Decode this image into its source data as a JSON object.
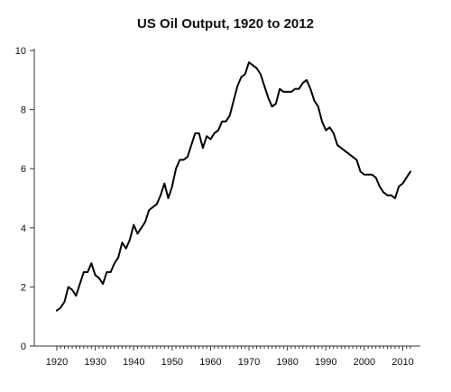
{
  "chart_data": {
    "type": "line",
    "title": "US Oil Output, 1920 to 2012",
    "xlabel": "",
    "ylabel": "",
    "xlim": [
      1920,
      2012
    ],
    "ylim": [
      0,
      10
    ],
    "grid": false,
    "x_ticks": [
      1920,
      1930,
      1940,
      1950,
      1960,
      1970,
      1980,
      1990,
      2000,
      2010
    ],
    "y_ticks": [
      0,
      2,
      4,
      6,
      8,
      10
    ],
    "series": [
      {
        "color": "#000000",
        "x": [
          1920,
          1921,
          1922,
          1923,
          1924,
          1925,
          1926,
          1927,
          1928,
          1929,
          1930,
          1931,
          1932,
          1933,
          1934,
          1935,
          1936,
          1937,
          1938,
          1939,
          1940,
          1941,
          1942,
          1943,
          1944,
          1945,
          1946,
          1947,
          1948,
          1949,
          1950,
          1951,
          1952,
          1953,
          1954,
          1955,
          1956,
          1957,
          1958,
          1959,
          1960,
          1961,
          1962,
          1963,
          1964,
          1965,
          1966,
          1967,
          1968,
          1969,
          1970,
          1971,
          1972,
          1973,
          1974,
          1975,
          1976,
          1977,
          1978,
          1979,
          1980,
          1981,
          1982,
          1983,
          1984,
          1985,
          1986,
          1987,
          1988,
          1989,
          1990,
          1991,
          1992,
          1993,
          1994,
          1995,
          1996,
          1997,
          1998,
          1999,
          2000,
          2001,
          2002,
          2003,
          2004,
          2005,
          2006,
          2007,
          2008,
          2009,
          2010,
          2011,
          2012
        ],
        "y": [
          1.2,
          1.3,
          1.5,
          2.0,
          1.9,
          1.7,
          2.1,
          2.5,
          2.5,
          2.8,
          2.4,
          2.3,
          2.1,
          2.5,
          2.5,
          2.8,
          3.0,
          3.5,
          3.3,
          3.6,
          4.1,
          3.8,
          4.0,
          4.2,
          4.6,
          4.7,
          4.8,
          5.1,
          5.5,
          5.0,
          5.4,
          6.0,
          6.3,
          6.3,
          6.4,
          6.8,
          7.2,
          7.2,
          6.7,
          7.1,
          7.0,
          7.2,
          7.3,
          7.6,
          7.6,
          7.8,
          8.3,
          8.8,
          9.1,
          9.2,
          9.6,
          9.5,
          9.4,
          9.2,
          8.8,
          8.4,
          8.1,
          8.2,
          8.7,
          8.6,
          8.6,
          8.6,
          8.7,
          8.7,
          8.9,
          9.0,
          8.7,
          8.3,
          8.1,
          7.6,
          7.3,
          7.4,
          7.2,
          6.8,
          6.7,
          6.6,
          6.5,
          6.4,
          6.3,
          5.9,
          5.8,
          5.8,
          5.8,
          5.7,
          5.4,
          5.2,
          5.1,
          5.1,
          5.0,
          5.4,
          5.5,
          5.7,
          5.9
        ]
      }
    ]
  }
}
